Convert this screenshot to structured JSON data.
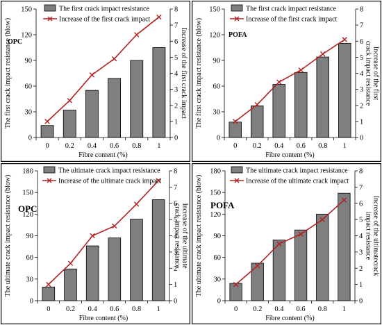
{
  "chart_data": [
    {
      "type": "bar",
      "title": "",
      "tag": "OPC",
      "categories": [
        "0",
        "0.2",
        "0.4",
        "0.6",
        "0.8",
        "1"
      ],
      "xlabel": "Fibre content (%)",
      "ylabel": "The first crack impact resistance (blow)",
      "y2label": "Increase of the first crack impact",
      "ylim": [
        0,
        150
      ],
      "yticks": [
        0,
        30,
        60,
        90,
        120,
        150
      ],
      "y2lim": [
        0,
        8
      ],
      "y2ticks": [
        0,
        1,
        2,
        3,
        4,
        5,
        6,
        7,
        8
      ],
      "legend_position": "top",
      "series": [
        {
          "name": "The first crack impact resistance",
          "type": "bar",
          "axis": "left",
          "color": "#7f7f7f",
          "values": [
            14,
            32,
            55,
            69,
            90,
            105
          ]
        },
        {
          "name": "Increase of the first crack impact",
          "type": "line",
          "axis": "right",
          "color": "#b22222",
          "values": [
            1,
            2.3,
            3.9,
            4.9,
            6.4,
            7.5
          ]
        }
      ]
    },
    {
      "type": "bar",
      "title": "",
      "tag": "POFA",
      "categories": [
        "0",
        "0.2",
        "0.4",
        "0.6",
        "0.8",
        "1"
      ],
      "xlabel": "Fibre content (%)",
      "ylabel": "The first crack impact resistance (blow)",
      "y2label": "Increase of the first crack impact resistance",
      "ylim": [
        0,
        150
      ],
      "yticks": [
        0,
        30,
        60,
        90,
        120,
        150
      ],
      "y2lim": [
        0,
        8
      ],
      "y2ticks": [
        0,
        1,
        2,
        3,
        4,
        5,
        6,
        7,
        8
      ],
      "legend_position": "top",
      "series": [
        {
          "name": "The first crack impact resistance",
          "type": "bar",
          "axis": "left",
          "color": "#7f7f7f",
          "values": [
            18,
            37,
            62,
            76,
            94,
            110
          ]
        },
        {
          "name": "Increase of the first crack impact",
          "type": "line",
          "axis": "right",
          "color": "#b22222",
          "values": [
            1,
            2.05,
            3.45,
            4.2,
            5.2,
            6.1
          ]
        }
      ]
    },
    {
      "type": "bar",
      "title": "",
      "tag": "OPC",
      "categories": [
        "0",
        "0.2",
        "0.4",
        "0.6",
        "0.8",
        "1"
      ],
      "xlabel": "Fibre content (%)",
      "ylabel": "The ultimate crack impact resistance (blow)",
      "y2label": "Increase of the ultimate crack impact resistance",
      "ylim": [
        0,
        180
      ],
      "yticks": [
        0,
        30,
        60,
        90,
        120,
        150,
        180
      ],
      "y2lim": [
        0,
        8
      ],
      "y2ticks": [
        0,
        1,
        2,
        3,
        4,
        5,
        6,
        7,
        8
      ],
      "legend_position": "top",
      "series": [
        {
          "name": "The ultimate crack impact resistance",
          "type": "bar",
          "axis": "left",
          "color": "#7f7f7f",
          "values": [
            19,
            44,
            76,
            87,
            113,
            140
          ]
        },
        {
          "name": "Increase of the ultimate crack impact",
          "type": "line",
          "axis": "right",
          "color": "#b22222",
          "values": [
            1,
            2.3,
            4.0,
            4.6,
            5.95,
            7.4
          ]
        }
      ]
    },
    {
      "type": "bar",
      "title": "",
      "tag": "POFA",
      "categories": [
        "0",
        "0.2",
        "0.4",
        "0.6",
        "0.8",
        "1"
      ],
      "xlabel": "Fibre content (%)",
      "ylabel": "The ultimate crack impact resistance (blow)",
      "y2label": "Increase of the ultimatecrack impact resistance",
      "ylim": [
        0,
        180
      ],
      "yticks": [
        0,
        30,
        60,
        90,
        120,
        150,
        180
      ],
      "y2lim": [
        0,
        8
      ],
      "y2ticks": [
        0,
        1,
        2,
        3,
        4,
        5,
        6,
        7,
        8
      ],
      "legend_position": "top",
      "series": [
        {
          "name": "The ultimate crack impact resistance",
          "type": "bar",
          "axis": "left",
          "color": "#7f7f7f",
          "values": [
            24,
            52,
            84,
            98,
            120,
            149
          ]
        },
        {
          "name": "Increase of the ultimate crack impact",
          "type": "line",
          "axis": "right",
          "color": "#b22222",
          "values": [
            1,
            2.15,
            3.5,
            4.1,
            5.0,
            6.2
          ]
        }
      ]
    }
  ]
}
